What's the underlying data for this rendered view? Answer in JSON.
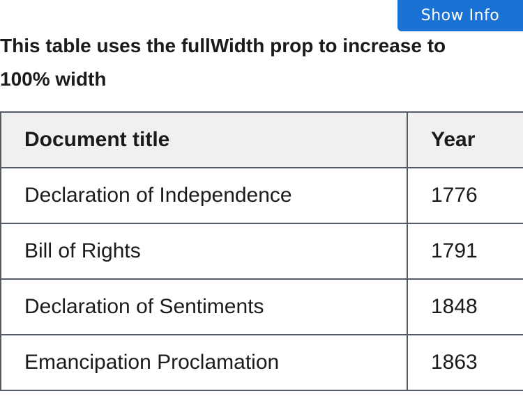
{
  "toolbar": {
    "show_info_label": "Show Info"
  },
  "table": {
    "caption": "This table uses the fullWidth prop to increase to 100% width",
    "headers": [
      "Document title",
      "Year"
    ],
    "rows": [
      [
        "Declaration of Independence",
        "1776"
      ],
      [
        "Bill of Rights",
        "1791"
      ],
      [
        "Declaration of Sentiments",
        "1848"
      ],
      [
        "Emancipation Proclamation",
        "1863"
      ]
    ]
  },
  "colors": {
    "button_bg": "#1a73d4",
    "header_bg": "#f0f0f0",
    "border": "#565c65",
    "text": "#1b1b1b"
  }
}
